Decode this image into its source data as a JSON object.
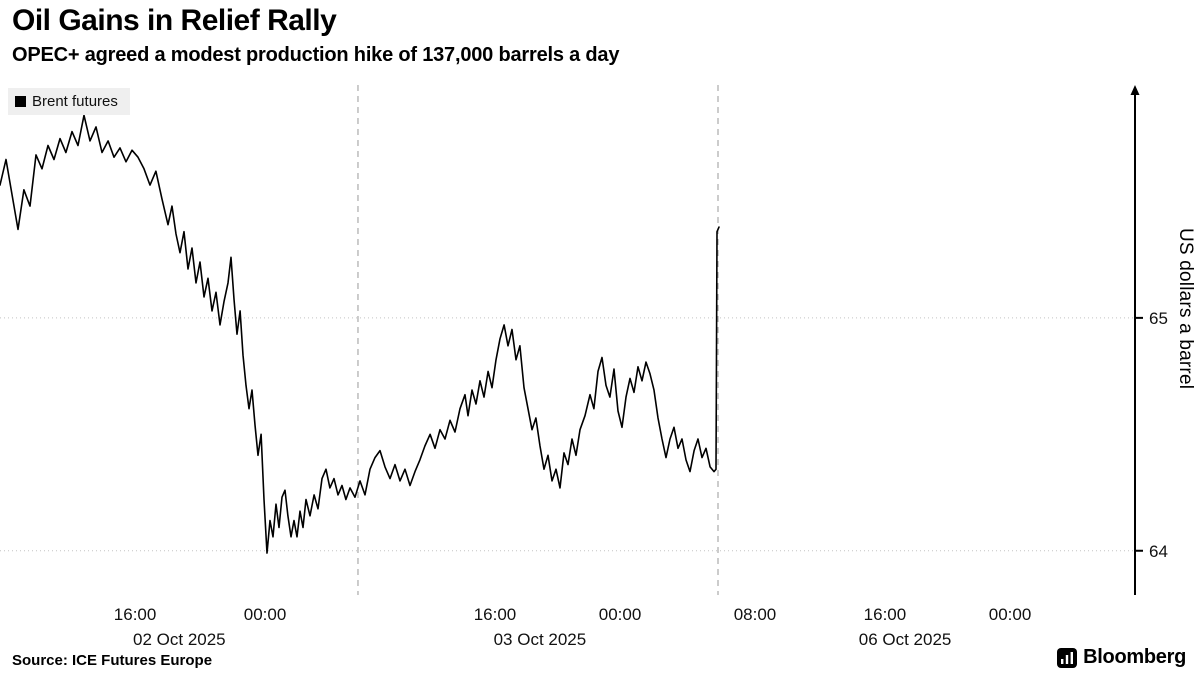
{
  "header": {
    "title": "Oil Gains in Relief Rally",
    "subtitle": "OPEC+ agreed a modest production hike of 137,000 barrels a day"
  },
  "legend": {
    "label": "Brent futures",
    "swatch_color": "#000000"
  },
  "footer": {
    "source": "Source: ICE Futures Europe",
    "brand": "Bloomberg"
  },
  "chart_data": {
    "type": "line",
    "title": "Oil Gains in Relief Rally",
    "subtitle": "OPEC+ agreed a modest production hike of 137,000 barrels a day",
    "series_name": "Brent futures",
    "ylabel": "US dollars a barrel",
    "line_color": "#000000",
    "ylim": [
      63.81,
      66.0
    ],
    "grid": "dotted-horizontal",
    "legend_position": "top-left",
    "x_encoding": "fraction of plot width (intraday time axis, 02-07 Oct 2025)",
    "y_ticks": [
      {
        "value": 65,
        "label": "65"
      },
      {
        "value": 64,
        "label": "64"
      }
    ],
    "x_ticks": [
      {
        "x": 0.119,
        "label": "16:00"
      },
      {
        "x": 0.2335,
        "label": "00:00"
      },
      {
        "x": 0.4361,
        "label": "16:00"
      },
      {
        "x": 0.5463,
        "label": "00:00"
      },
      {
        "x": 0.6652,
        "label": "08:00"
      },
      {
        "x": 0.7797,
        "label": "16:00"
      },
      {
        "x": 0.8899,
        "label": "00:00"
      }
    ],
    "x_date_labels": [
      {
        "x": 0.158,
        "label": "02 Oct 2025"
      },
      {
        "x": 0.4757,
        "label": "03 Oct 2025"
      },
      {
        "x": 0.7974,
        "label": "06 Oct 2025"
      }
    ],
    "session_breaks": [
      0.3154,
      0.6326
    ],
    "points": [
      [
        0.0,
        65.57
      ],
      [
        0.0053,
        65.68
      ],
      [
        0.0106,
        65.53
      ],
      [
        0.0159,
        65.38
      ],
      [
        0.0211,
        65.55
      ],
      [
        0.0264,
        65.48
      ],
      [
        0.0317,
        65.7
      ],
      [
        0.037,
        65.64
      ],
      [
        0.0423,
        65.74
      ],
      [
        0.0476,
        65.68
      ],
      [
        0.0529,
        65.77
      ],
      [
        0.0581,
        65.71
      ],
      [
        0.0634,
        65.8
      ],
      [
        0.0687,
        65.74
      ],
      [
        0.074,
        65.87
      ],
      [
        0.0793,
        65.76
      ],
      [
        0.0846,
        65.82
      ],
      [
        0.0899,
        65.71
      ],
      [
        0.0952,
        65.76
      ],
      [
        0.1004,
        65.69
      ],
      [
        0.1057,
        65.73
      ],
      [
        0.111,
        65.67
      ],
      [
        0.1163,
        65.72
      ],
      [
        0.1216,
        65.69
      ],
      [
        0.1269,
        65.64
      ],
      [
        0.1322,
        65.57
      ],
      [
        0.1374,
        65.63
      ],
      [
        0.1427,
        65.51
      ],
      [
        0.148,
        65.4
      ],
      [
        0.1515,
        65.48
      ],
      [
        0.1551,
        65.36
      ],
      [
        0.1586,
        65.28
      ],
      [
        0.1621,
        65.37
      ],
      [
        0.1656,
        65.21
      ],
      [
        0.1692,
        65.3
      ],
      [
        0.1727,
        65.15
      ],
      [
        0.1762,
        65.24
      ],
      [
        0.1797,
        65.09
      ],
      [
        0.1833,
        65.17
      ],
      [
        0.1868,
        65.03
      ],
      [
        0.1903,
        65.11
      ],
      [
        0.1938,
        64.97
      ],
      [
        0.1974,
        65.07
      ],
      [
        0.2009,
        65.15
      ],
      [
        0.2035,
        65.26
      ],
      [
        0.2062,
        65.08
      ],
      [
        0.2088,
        64.93
      ],
      [
        0.2115,
        65.03
      ],
      [
        0.2141,
        64.84
      ],
      [
        0.2167,
        64.71
      ],
      [
        0.2194,
        64.61
      ],
      [
        0.222,
        64.69
      ],
      [
        0.2247,
        64.54
      ],
      [
        0.2273,
        64.41
      ],
      [
        0.23,
        64.5
      ],
      [
        0.2326,
        64.22
      ],
      [
        0.2352,
        63.99
      ],
      [
        0.2379,
        64.13
      ],
      [
        0.2405,
        64.06
      ],
      [
        0.2432,
        64.2
      ],
      [
        0.2458,
        64.1
      ],
      [
        0.2485,
        64.23
      ],
      [
        0.2511,
        64.26
      ],
      [
        0.2537,
        64.15
      ],
      [
        0.2564,
        64.06
      ],
      [
        0.259,
        64.13
      ],
      [
        0.2617,
        64.06
      ],
      [
        0.2643,
        64.17
      ],
      [
        0.267,
        64.1
      ],
      [
        0.2696,
        64.22
      ],
      [
        0.2731,
        64.15
      ],
      [
        0.2767,
        64.24
      ],
      [
        0.2802,
        64.18
      ],
      [
        0.2837,
        64.31
      ],
      [
        0.2872,
        64.35
      ],
      [
        0.2907,
        64.27
      ],
      [
        0.2943,
        64.31
      ],
      [
        0.2978,
        64.24
      ],
      [
        0.3013,
        64.28
      ],
      [
        0.3048,
        64.22
      ],
      [
        0.3084,
        64.27
      ],
      [
        0.3128,
        64.23
      ],
      [
        0.3172,
        64.3
      ],
      [
        0.3216,
        64.24
      ],
      [
        0.326,
        64.35
      ],
      [
        0.3304,
        64.4
      ],
      [
        0.3348,
        64.43
      ],
      [
        0.3392,
        64.36
      ],
      [
        0.3436,
        64.31
      ],
      [
        0.348,
        64.37
      ],
      [
        0.3524,
        64.3
      ],
      [
        0.3568,
        64.35
      ],
      [
        0.3612,
        64.28
      ],
      [
        0.3656,
        64.34
      ],
      [
        0.37,
        64.39
      ],
      [
        0.3744,
        64.45
      ],
      [
        0.3789,
        64.5
      ],
      [
        0.3833,
        64.44
      ],
      [
        0.3877,
        64.52
      ],
      [
        0.3921,
        64.48
      ],
      [
        0.3965,
        64.56
      ],
      [
        0.4009,
        64.51
      ],
      [
        0.4053,
        64.61
      ],
      [
        0.4097,
        64.67
      ],
      [
        0.4123,
        64.58
      ],
      [
        0.4159,
        64.69
      ],
      [
        0.4194,
        64.63
      ],
      [
        0.4229,
        64.73
      ],
      [
        0.4264,
        64.66
      ],
      [
        0.43,
        64.77
      ],
      [
        0.4335,
        64.7
      ],
      [
        0.437,
        64.82
      ],
      [
        0.4405,
        64.91
      ],
      [
        0.4441,
        64.97
      ],
      [
        0.4476,
        64.88
      ],
      [
        0.4511,
        64.95
      ],
      [
        0.4546,
        64.82
      ],
      [
        0.4581,
        64.88
      ],
      [
        0.4617,
        64.7
      ],
      [
        0.4652,
        64.61
      ],
      [
        0.4687,
        64.52
      ],
      [
        0.4722,
        64.57
      ],
      [
        0.4758,
        64.45
      ],
      [
        0.4793,
        64.35
      ],
      [
        0.4828,
        64.41
      ],
      [
        0.4863,
        64.3
      ],
      [
        0.4899,
        64.35
      ],
      [
        0.4934,
        64.27
      ],
      [
        0.4969,
        64.42
      ],
      [
        0.5004,
        64.37
      ],
      [
        0.504,
        64.48
      ],
      [
        0.5075,
        64.41
      ],
      [
        0.511,
        64.52
      ],
      [
        0.5154,
        64.58
      ],
      [
        0.5198,
        64.67
      ],
      [
        0.5233,
        64.61
      ],
      [
        0.5269,
        64.77
      ],
      [
        0.5304,
        64.83
      ],
      [
        0.5339,
        64.71
      ],
      [
        0.5374,
        64.66
      ],
      [
        0.541,
        64.78
      ],
      [
        0.5445,
        64.6
      ],
      [
        0.548,
        64.53
      ],
      [
        0.5515,
        64.66
      ],
      [
        0.5551,
        64.74
      ],
      [
        0.5586,
        64.68
      ],
      [
        0.5621,
        64.79
      ],
      [
        0.5656,
        64.73
      ],
      [
        0.5692,
        64.81
      ],
      [
        0.5727,
        64.76
      ],
      [
        0.5762,
        64.69
      ],
      [
        0.5797,
        64.57
      ],
      [
        0.5833,
        64.48
      ],
      [
        0.5868,
        64.4
      ],
      [
        0.5903,
        64.48
      ],
      [
        0.5938,
        64.53
      ],
      [
        0.5974,
        64.44
      ],
      [
        0.6009,
        64.48
      ],
      [
        0.6044,
        64.39
      ],
      [
        0.6079,
        64.34
      ],
      [
        0.6115,
        64.43
      ],
      [
        0.615,
        64.48
      ],
      [
        0.6185,
        64.4
      ],
      [
        0.622,
        64.44
      ],
      [
        0.6256,
        64.36
      ],
      [
        0.6291,
        64.34
      ],
      [
        0.6308,
        64.35
      ],
      [
        0.6317,
        65.37
      ],
      [
        0.6335,
        65.39
      ]
    ]
  }
}
